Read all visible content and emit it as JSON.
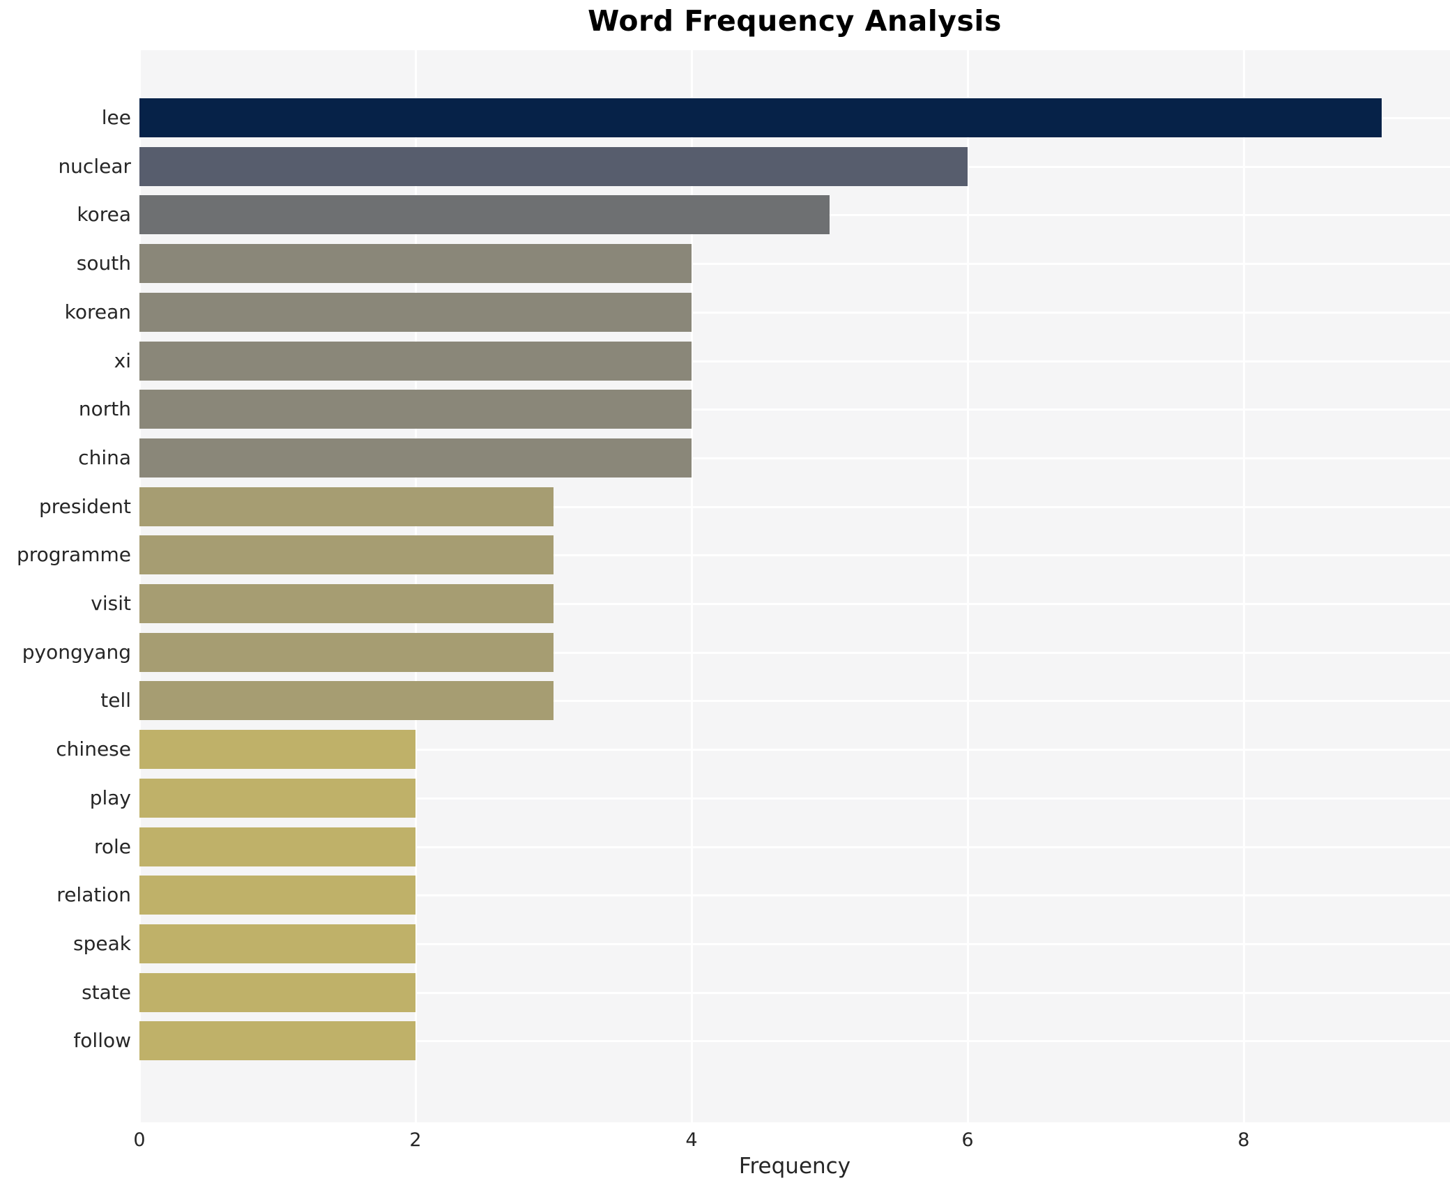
{
  "title": "Word Frequency Analysis",
  "chart_data": {
    "type": "bar",
    "orientation": "horizontal",
    "title": "Word Frequency Analysis",
    "xlabel": "Frequency",
    "ylabel": "",
    "categories": [
      "lee",
      "nuclear",
      "korea",
      "south",
      "korean",
      "xi",
      "north",
      "china",
      "president",
      "programme",
      "visit",
      "pyongyang",
      "tell",
      "chinese",
      "play",
      "role",
      "relation",
      "speak",
      "state",
      "follow"
    ],
    "values": [
      9,
      6,
      5,
      4,
      4,
      4,
      4,
      4,
      3,
      3,
      3,
      3,
      3,
      2,
      2,
      2,
      2,
      2,
      2,
      2
    ],
    "bar_colors": [
      "#062248",
      "#575d6d",
      "#6e7072",
      "#8a8779",
      "#8a8779",
      "#8a8779",
      "#8a8779",
      "#8a8779",
      "#a69d72",
      "#a69d72",
      "#a69d72",
      "#a69d72",
      "#a69d72",
      "#bfb169",
      "#bfb169",
      "#bfb169",
      "#bfb169",
      "#bfb169",
      "#bfb169",
      "#bfb169"
    ],
    "xticks": [
      0,
      2,
      4,
      6,
      8
    ],
    "xlim": [
      0,
      9.49
    ],
    "grid": true,
    "legend": "none",
    "plot_background": "#f5f5f6",
    "grid_color": "#ffffff",
    "text_color": "#262626"
  }
}
